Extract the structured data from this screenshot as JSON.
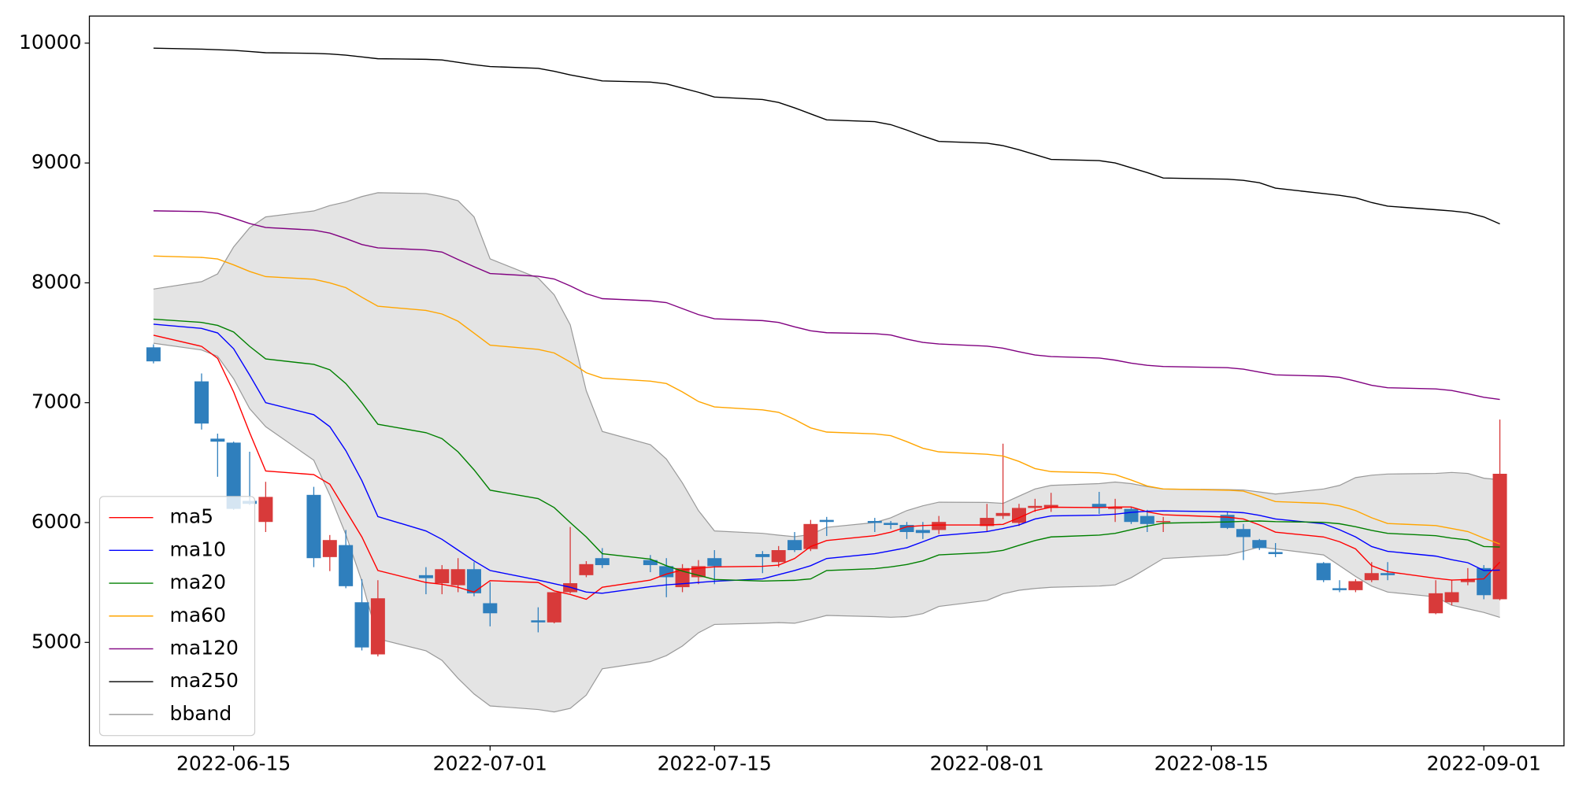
{
  "chart_data": {
    "type": "candlestick",
    "x": [
      "2022-06-10",
      "2022-06-13",
      "2022-06-14",
      "2022-06-15",
      "2022-06-16",
      "2022-06-17",
      "2022-06-20",
      "2022-06-21",
      "2022-06-22",
      "2022-06-23",
      "2022-06-24",
      "2022-06-27",
      "2022-06-28",
      "2022-06-29",
      "2022-06-30",
      "2022-07-01",
      "2022-07-04",
      "2022-07-05",
      "2022-07-06",
      "2022-07-07",
      "2022-07-08",
      "2022-07-11",
      "2022-07-12",
      "2022-07-13",
      "2022-07-14",
      "2022-07-15",
      "2022-07-18",
      "2022-07-19",
      "2022-07-20",
      "2022-07-21",
      "2022-07-22",
      "2022-07-25",
      "2022-07-26",
      "2022-07-27",
      "2022-07-28",
      "2022-07-29",
      "2022-08-01",
      "2022-08-02",
      "2022-08-03",
      "2022-08-04",
      "2022-08-05",
      "2022-08-08",
      "2022-08-09",
      "2022-08-10",
      "2022-08-11",
      "2022-08-12",
      "2022-08-16",
      "2022-08-17",
      "2022-08-18",
      "2022-08-19",
      "2022-08-22",
      "2022-08-23",
      "2022-08-24",
      "2022-08-25",
      "2022-08-26",
      "2022-08-29",
      "2022-08-30",
      "2022-08-31",
      "2022-09-01",
      "2022-09-02"
    ],
    "open": [
      7462,
      7178,
      6700,
      6667,
      6181,
      6005,
      6231,
      5712,
      5812,
      5335,
      4900,
      5561,
      5494,
      5477,
      5611,
      5327,
      5184,
      5167,
      5419,
      5561,
      5703,
      5687,
      5636,
      5461,
      5544,
      5703,
      5737,
      5670,
      5854,
      5779,
      6022,
      6013,
      5997,
      5980,
      5938,
      5938,
      5971,
      6055,
      5997,
      6122,
      6122,
      6156,
      6114,
      6114,
      6055,
      6005,
      6064,
      5946,
      5854,
      5754,
      5662,
      5452,
      5436,
      5519,
      5578,
      5243,
      5335,
      5503,
      5620,
      5360
    ],
    "high": [
      7487,
      7244,
      6742,
      6675,
      6591,
      6340,
      6298,
      5896,
      5938,
      5528,
      5519,
      5628,
      5645,
      5703,
      5670,
      5503,
      5293,
      5419,
      5963,
      5678,
      5787,
      5729,
      5703,
      5653,
      5687,
      5770,
      5762,
      5804,
      5921,
      6022,
      6047,
      6039,
      6013,
      6005,
      6005,
      6055,
      6156,
      6658,
      6156,
      6198,
      6248,
      6256,
      6198,
      6131,
      6106,
      6047,
      6089,
      5988,
      5863,
      5829,
      5670,
      5519,
      5528,
      5670,
      5670,
      5519,
      5519,
      5620,
      5645,
      6859
    ],
    "low": [
      7328,
      6776,
      6382,
      6106,
      6147,
      5921,
      5628,
      5595,
      5452,
      4933,
      4883,
      5402,
      5402,
      5419,
      5385,
      5134,
      5084,
      5159,
      5410,
      5544,
      5620,
      5586,
      5377,
      5419,
      5486,
      5486,
      5578,
      5628,
      5754,
      5762,
      5888,
      5921,
      5946,
      5863,
      5863,
      5904,
      5921,
      6030,
      5971,
      6089,
      6089,
      6072,
      6005,
      5988,
      5921,
      5921,
      5946,
      5687,
      5771,
      5712,
      5503,
      5419,
      5419,
      5503,
      5519,
      5235,
      5310,
      5477,
      5360,
      5352
    ],
    "close": [
      7345,
      6826,
      6675,
      6114,
      6156,
      6214,
      5703,
      5854,
      5469,
      4958,
      5368,
      5536,
      5611,
      5611,
      5410,
      5243,
      5167,
      5419,
      5494,
      5653,
      5645,
      5645,
      5544,
      5620,
      5636,
      5636,
      5712,
      5770,
      5770,
      5988,
      6005,
      5997,
      5980,
      5921,
      5913,
      6005,
      6039,
      6080,
      6122,
      6139,
      6147,
      6122,
      6130,
      6005,
      5988,
      6013,
      5955,
      5879,
      5787,
      5737,
      5519,
      5436,
      5511,
      5578,
      5561,
      5410,
      5419,
      5528,
      5394,
      6407
    ],
    "up_color": "#d83a3a",
    "down_color": "#2f7fbd",
    "series": [
      {
        "name": "ma5",
        "color": "red",
        "values": [
          7563,
          7470,
          7370,
          7090,
          6750,
          6430,
          6400,
          6320,
          6100,
          5880,
          5600,
          5500,
          5485,
          5460,
          5420,
          5515,
          5500,
          5430,
          5400,
          5360,
          5460,
          5520,
          5570,
          5605,
          5620,
          5630,
          5635,
          5645,
          5700,
          5800,
          5850,
          5890,
          5920,
          5965,
          5975,
          5980,
          5980,
          5985,
          6040,
          6100,
          6128,
          6125,
          6130,
          6130,
          6090,
          6065,
          6045,
          6030,
          5980,
          5920,
          5880,
          5840,
          5780,
          5640,
          5590,
          5535,
          5520,
          5525,
          5530,
          5670
        ]
      },
      {
        "name": "ma10",
        "color": "blue",
        "values": [
          7655,
          7620,
          7582,
          7450,
          7230,
          7000,
          6900,
          6800,
          6600,
          6350,
          6050,
          5930,
          5860,
          5770,
          5680,
          5600,
          5520,
          5490,
          5460,
          5420,
          5410,
          5465,
          5480,
          5490,
          5500,
          5510,
          5530,
          5565,
          5600,
          5640,
          5700,
          5740,
          5765,
          5790,
          5840,
          5890,
          5925,
          5950,
          5980,
          6030,
          6055,
          6062,
          6070,
          6085,
          6095,
          6097,
          6090,
          6082,
          6060,
          6030,
          5990,
          5940,
          5880,
          5800,
          5760,
          5720,
          5690,
          5665,
          5600,
          5603
        ]
      },
      {
        "name": "ma20",
        "color": "green",
        "values": [
          7697,
          7670,
          7645,
          7590,
          7470,
          7365,
          7320,
          7275,
          7160,
          7000,
          6820,
          6750,
          6700,
          6590,
          6440,
          6270,
          6200,
          6125,
          6000,
          5880,
          5740,
          5695,
          5640,
          5595,
          5560,
          5525,
          5512,
          5515,
          5518,
          5530,
          5600,
          5615,
          5630,
          5650,
          5680,
          5730,
          5750,
          5768,
          5810,
          5850,
          5880,
          5895,
          5910,
          5940,
          5970,
          5995,
          6005,
          6010,
          6013,
          6008,
          6002,
          5990,
          5965,
          5935,
          5910,
          5890,
          5870,
          5855,
          5800,
          5796
        ]
      },
      {
        "name": "ma60",
        "color": "orange",
        "values": [
          8224,
          8212,
          8199,
          8150,
          8095,
          8052,
          8030,
          8000,
          7960,
          7880,
          7805,
          7770,
          7740,
          7680,
          7580,
          7480,
          7445,
          7415,
          7340,
          7250,
          7205,
          7180,
          7160,
          7090,
          7010,
          6965,
          6940,
          6920,
          6860,
          6790,
          6755,
          6740,
          6725,
          6675,
          6620,
          6590,
          6570,
          6555,
          6510,
          6450,
          6425,
          6415,
          6400,
          6355,
          6305,
          6280,
          6270,
          6262,
          6220,
          6175,
          6160,
          6140,
          6100,
          6040,
          5992,
          5975,
          5950,
          5925,
          5870,
          5821
        ]
      },
      {
        "name": "ma120",
        "color": "purple",
        "values": [
          8601,
          8595,
          8580,
          8540,
          8495,
          8462,
          8440,
          8415,
          8370,
          8320,
          8292,
          8275,
          8257,
          8195,
          8135,
          8078,
          8055,
          8032,
          7975,
          7910,
          7868,
          7850,
          7835,
          7785,
          7735,
          7700,
          7685,
          7670,
          7633,
          7600,
          7584,
          7576,
          7565,
          7530,
          7503,
          7490,
          7472,
          7455,
          7425,
          7398,
          7385,
          7373,
          7355,
          7330,
          7312,
          7302,
          7292,
          7280,
          7255,
          7232,
          7222,
          7212,
          7180,
          7145,
          7125,
          7115,
          7102,
          7075,
          7045,
          7027
        ]
      },
      {
        "name": "ma250",
        "color": "black",
        "values": [
          9958,
          9950,
          9945,
          9940,
          9930,
          9920,
          9915,
          9910,
          9900,
          9885,
          9870,
          9865,
          9860,
          9840,
          9820,
          9805,
          9790,
          9765,
          9735,
          9710,
          9685,
          9675,
          9660,
          9625,
          9590,
          9550,
          9530,
          9505,
          9460,
          9410,
          9360,
          9345,
          9320,
          9275,
          9225,
          9180,
          9165,
          9145,
          9110,
          9070,
          9030,
          9020,
          9000,
          8960,
          8920,
          8875,
          8865,
          8855,
          8835,
          8790,
          8745,
          8730,
          8710,
          8670,
          8640,
          8610,
          8600,
          8585,
          8550,
          8492
        ]
      }
    ],
    "bband": {
      "name": "bband",
      "color": "#999999",
      "fill": "#e4e4e4",
      "upper": [
        7948,
        8010,
        8075,
        8300,
        8460,
        8550,
        8600,
        8645,
        8675,
        8720,
        8752,
        8745,
        8720,
        8685,
        8550,
        8200,
        8040,
        7900,
        7650,
        7100,
        6760,
        6650,
        6530,
        6330,
        6100,
        5930,
        5910,
        5895,
        5882,
        5900,
        5960,
        6000,
        6040,
        6100,
        6140,
        6170,
        6168,
        6160,
        6220,
        6280,
        6310,
        6325,
        6338,
        6325,
        6300,
        6280,
        6275,
        6272,
        6255,
        6238,
        6280,
        6310,
        6375,
        6395,
        6405,
        6410,
        6418,
        6410,
        6370,
        6357
      ],
      "lower": [
        7496,
        7440,
        7387,
        7200,
        6950,
        6800,
        6520,
        6230,
        5900,
        5510,
        5030,
        4930,
        4850,
        4700,
        4570,
        4470,
        4440,
        4420,
        4450,
        4560,
        4780,
        4840,
        4890,
        4970,
        5080,
        5150,
        5160,
        5165,
        5160,
        5190,
        5225,
        5215,
        5210,
        5215,
        5240,
        5300,
        5350,
        5405,
        5435,
        5450,
        5460,
        5470,
        5480,
        5540,
        5620,
        5700,
        5730,
        5760,
        5796,
        5780,
        5730,
        5640,
        5550,
        5470,
        5420,
        5380,
        5310,
        5280,
        5250,
        5209
      ]
    },
    "xlim": [
      "2022-06-06",
      "2022-09-06"
    ],
    "xticks": [
      "2022-06-15",
      "2022-07-01",
      "2022-07-15",
      "2022-08-01",
      "2022-08-15",
      "2022-09-01"
    ],
    "ylim": [
      4137,
      10226
    ],
    "yticks": [
      5000,
      6000,
      7000,
      8000,
      9000,
      10000
    ],
    "legend": "lower left"
  }
}
